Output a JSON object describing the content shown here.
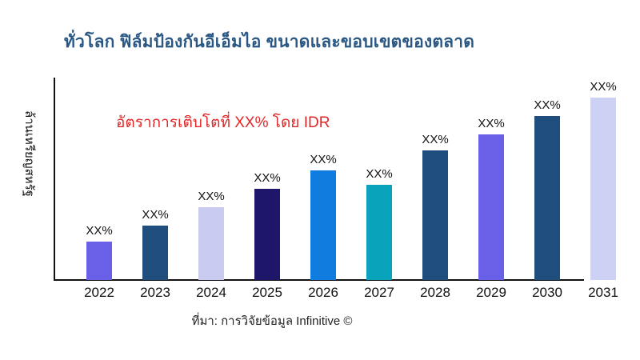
{
  "title": "ทั่วโลก ฟิล์มป้องกันอีเอ็มไอ ขนาดและขอบเขตของตลาด",
  "annotation": "อัตราการเติบโตที่ XX% โดย IDR",
  "source": "ที่มา: การวิจัยข้อมูล Infinitive ©",
  "colors": {
    "title": "#2A5783",
    "annotation": "#E12626",
    "axis": "#111111",
    "background": "#FFFFFF"
  },
  "chart_data": {
    "type": "bar",
    "title": "ทั่วโลก ฟิล์มป้องกันอีเอ็มไอ ขนาดและขอบเขตของตลาด",
    "xlabel": "",
    "ylabel": "ล้านเหรียญสหรัฐ",
    "categories": [
      "2022",
      "2023",
      "2024",
      "2025",
      "2026",
      "2027",
      "2028",
      "2029",
      "2030",
      "2031"
    ],
    "values": [
      21,
      30,
      40,
      50,
      60,
      52,
      71,
      80,
      90,
      100
    ],
    "value_note": "bar heights relative to tallest bar (%); actual values masked as XX% in chart",
    "bar_labels": [
      "XX%",
      "XX%",
      "XX%",
      "XX%",
      "XX%",
      "XX%",
      "XX%",
      "XX%",
      "XX%",
      "XX%"
    ],
    "bar_colors": [
      "#6A60E8",
      "#1F4E7E",
      "#C9CCF0",
      "#1E1668",
      "#107CE0",
      "#09A3BC",
      "#1F4E7E",
      "#6A60E8",
      "#1F4E7E",
      "#CDD1F3"
    ],
    "annotation": "อัตราการเติบโตที่ XX% โดย IDR",
    "grid": false,
    "legend": false,
    "ylim": [
      0,
      110
    ]
  }
}
